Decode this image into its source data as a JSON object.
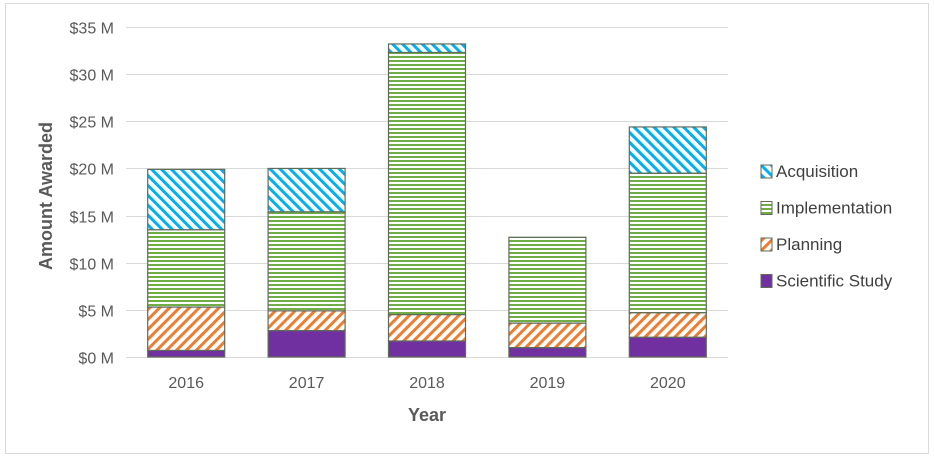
{
  "chart_data": {
    "type": "bar",
    "stacked": true,
    "title": "",
    "xlabel": "Year",
    "ylabel": "Amount Awarded",
    "categories": [
      "2016",
      "2017",
      "2018",
      "2019",
      "2020"
    ],
    "ylim": [
      0,
      35
    ],
    "yticks": [
      0,
      5,
      10,
      15,
      20,
      25,
      30,
      35
    ],
    "ytick_labels": [
      "$0 M",
      "$5 M",
      "$10 M",
      "$15 M",
      "$20 M",
      "$25 M",
      "$30 M",
      "$35 M"
    ],
    "grid": true,
    "legend_position": "right",
    "series": [
      {
        "name": "Scientific Study",
        "values": [
          0.7,
          2.8,
          1.7,
          1.0,
          2.1
        ],
        "color": "#7030a0",
        "pattern": "solid"
      },
      {
        "name": "Planning",
        "values": [
          4.6,
          2.1,
          2.8,
          2.6,
          2.6
        ],
        "color": "#ed7d31",
        "pattern": "diagonal"
      },
      {
        "name": "Implementation",
        "values": [
          8.2,
          10.5,
          27.8,
          9.1,
          14.8
        ],
        "color": "#70ad47",
        "pattern": "horizontal"
      },
      {
        "name": "Acquisition",
        "values": [
          6.4,
          4.6,
          0.9,
          0.0,
          4.9
        ],
        "color": "#00b0f0",
        "pattern": "diagonal"
      }
    ],
    "legend_order": [
      "Acquisition",
      "Implementation",
      "Planning",
      "Scientific Study"
    ]
  }
}
